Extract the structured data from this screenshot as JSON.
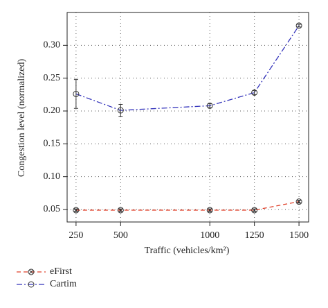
{
  "chart_data": {
    "type": "line",
    "x_label": "Traffic (vehicles/km²)",
    "y_label": "Congestion level (normalized)",
    "x": [
      250,
      500,
      1000,
      1250,
      1500
    ],
    "series": [
      {
        "name": "eFirst",
        "color": "#e0402a",
        "dash": "6,4",
        "marker": "circle-x",
        "values": [
          0.049,
          0.049,
          0.049,
          0.049,
          0.062
        ],
        "errors": [
          0.002,
          0.002,
          0.002,
          0.002,
          0.002
        ]
      },
      {
        "name": "Cartim",
        "color": "#3333bb",
        "dash": "8,3,2,3",
        "marker": "circle",
        "values": [
          0.226,
          0.201,
          0.208,
          0.228,
          0.33
        ],
        "errors": [
          0.022,
          0.009,
          0.003,
          0.003,
          0.002
        ]
      }
    ],
    "xlim": [
      200,
      1554
    ],
    "ylim": [
      0.031,
      0.35
    ],
    "xticks": [
      250,
      500,
      1000,
      1250,
      1500
    ],
    "yticks": [
      {
        "value": 0.05,
        "label": "0.05"
      },
      {
        "value": 0.1,
        "label": "0.10"
      },
      {
        "value": 0.15,
        "label": "0.15"
      },
      {
        "value": 0.2,
        "label": "0.20"
      },
      {
        "value": 0.25,
        "label": "0.25"
      },
      {
        "value": 0.3,
        "label": "0.30"
      }
    ],
    "grid": true,
    "legend": "bottom-left"
  }
}
